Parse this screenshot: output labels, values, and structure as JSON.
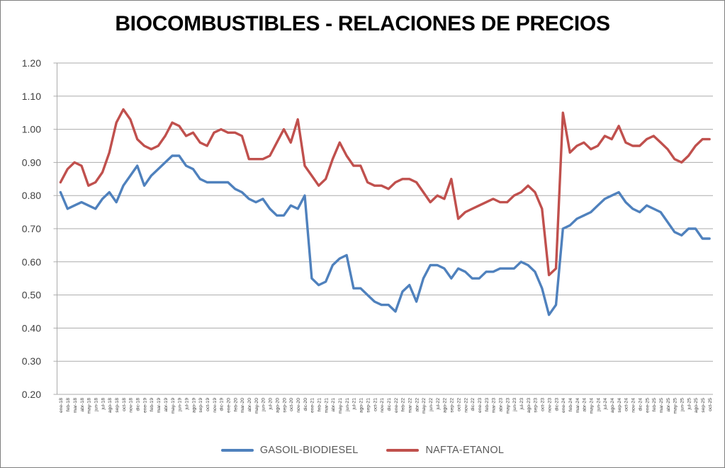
{
  "title": "BIOCOMBUSTIBLES - RELACIONES DE PRECIOS",
  "colors": {
    "gasoil_biodiesel": "#4F81BD",
    "nafta_etanol": "#C0504D",
    "grid": "#ABABAB",
    "axis_text": "#404040",
    "legend_text": "#595959",
    "frame_border": "#7F7F7F",
    "background": "#FFFFFF"
  },
  "legend": {
    "items": [
      {
        "label": "GASOIL-BIODIESEL",
        "color": "#4F81BD"
      },
      {
        "label": "NAFTA-ETANOL",
        "color": "#C0504D"
      }
    ]
  },
  "chart_data": {
    "type": "line",
    "title": "BIOCOMBUSTIBLES - RELACIONES DE PRECIOS",
    "xlabel": "",
    "ylabel": "",
    "ylim": [
      0.2,
      1.2
    ],
    "y_ticks": [
      "1.20",
      "1.10",
      "1.00",
      "0.90",
      "0.80",
      "0.70",
      "0.60",
      "0.50",
      "0.40",
      "0.30",
      "0.20"
    ],
    "grid": "horizontal",
    "legend_position": "bottom",
    "categories": [
      "ene-18",
      "feb-18",
      "mar-18",
      "abr-18",
      "may-18",
      "jun-18",
      "jul-18",
      "ago-18",
      "sep-18",
      "oct-18",
      "nov-18",
      "dic-18",
      "ene-19",
      "feb-19",
      "mar-19",
      "abr-19",
      "may-19",
      "jun-19",
      "jul-19",
      "ago-19",
      "sep-19",
      "oct-19",
      "nov-19",
      "dic-19",
      "ene-20",
      "feb-20",
      "mar-20",
      "abr-20",
      "may-20",
      "jun-20",
      "jul-20",
      "ago-20",
      "sep-20",
      "oct-20",
      "nov-20",
      "dic-20",
      "ene-21",
      "feb-21",
      "mar-21",
      "abr-21",
      "may-21",
      "jun-21",
      "jul-21",
      "ago-21",
      "sep-21",
      "oct-21",
      "nov-21",
      "dic-21",
      "ene-22",
      "feb-22",
      "mar-22",
      "abr-22",
      "may-22",
      "jun-22",
      "jul-22",
      "ago-22",
      "sep-22",
      "oct-22",
      "nov-22",
      "dic-22",
      "ene-23",
      "feb-23",
      "mar-23",
      "abr-23",
      "may-23",
      "jun-23",
      "jul-23",
      "ago-23",
      "sep-23",
      "oct-23",
      "nov-23",
      "dic-23",
      "ene-24",
      "feb-24",
      "mar-24",
      "abr-24",
      "may-24",
      "jun-24",
      "jul-24",
      "ago-24",
      "sep-24",
      "oct-24",
      "nov-24",
      "dic-24",
      "ene-25",
      "feb-25",
      "mar-25",
      "abr-25",
      "may-25",
      "jun-25",
      "jul-25",
      "ago-25",
      "sep-25",
      "oct-25"
    ],
    "series": [
      {
        "name": "GASOIL-BIODIESEL",
        "color": "#4F81BD",
        "values": [
          0.81,
          0.76,
          0.77,
          0.78,
          0.77,
          0.76,
          0.79,
          0.81,
          0.78,
          0.83,
          0.86,
          0.89,
          0.83,
          0.86,
          0.88,
          0.9,
          0.92,
          0.92,
          0.89,
          0.88,
          0.85,
          0.84,
          0.84,
          0.84,
          0.84,
          0.82,
          0.81,
          0.79,
          0.78,
          0.79,
          0.76,
          0.74,
          0.74,
          0.77,
          0.76,
          0.8,
          0.55,
          0.53,
          0.54,
          0.59,
          0.61,
          0.62,
          0.52,
          0.52,
          0.5,
          0.48,
          0.47,
          0.47,
          0.45,
          0.51,
          0.53,
          0.48,
          0.55,
          0.59,
          0.59,
          0.58,
          0.55,
          0.58,
          0.57,
          0.55,
          0.55,
          0.57,
          0.57,
          0.58,
          0.58,
          0.58,
          0.6,
          0.59,
          0.57,
          0.52,
          0.44,
          0.47,
          0.7,
          0.71,
          0.73,
          0.74,
          0.75,
          0.77,
          0.79,
          0.8,
          0.81,
          0.78,
          0.76,
          0.75,
          0.77,
          0.76,
          0.75,
          0.72,
          0.69,
          0.68,
          0.7,
          0.7,
          0.67,
          0.67
        ]
      },
      {
        "name": "NAFTA-ETANOL",
        "color": "#C0504D",
        "values": [
          0.84,
          0.88,
          0.9,
          0.89,
          0.83,
          0.84,
          0.87,
          0.93,
          1.02,
          1.06,
          1.03,
          0.97,
          0.95,
          0.94,
          0.95,
          0.98,
          1.02,
          1.01,
          0.98,
          0.99,
          0.96,
          0.95,
          0.99,
          1.0,
          0.99,
          0.99,
          0.98,
          0.91,
          0.91,
          0.91,
          0.92,
          0.96,
          1.0,
          0.96,
          1.03,
          0.89,
          0.86,
          0.83,
          0.85,
          0.91,
          0.96,
          0.92,
          0.89,
          0.89,
          0.84,
          0.83,
          0.83,
          0.82,
          0.84,
          0.85,
          0.85,
          0.84,
          0.81,
          0.78,
          0.8,
          0.79,
          0.85,
          0.73,
          0.75,
          0.76,
          0.77,
          0.78,
          0.79,
          0.78,
          0.78,
          0.8,
          0.81,
          0.83,
          0.81,
          0.76,
          0.56,
          0.58,
          1.05,
          0.93,
          0.95,
          0.96,
          0.94,
          0.95,
          0.98,
          0.97,
          1.01,
          0.96,
          0.95,
          0.95,
          0.97,
          0.98,
          0.96,
          0.94,
          0.91,
          0.9,
          0.92,
          0.95,
          0.97,
          0.97
        ]
      }
    ]
  }
}
